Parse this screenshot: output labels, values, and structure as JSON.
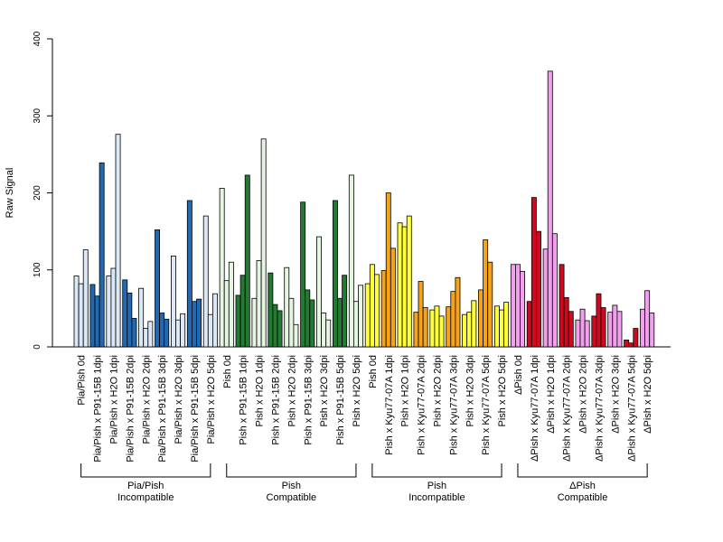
{
  "chart_data": {
    "type": "bar",
    "ylabel": "Raw Signal",
    "ylim": [
      0,
      400
    ],
    "yticks": [
      "0",
      "100",
      "200",
      "300",
      "400"
    ],
    "bars_per_category": 3,
    "categories": [
      "Pia/Pish 0d",
      "Pia/Pish x P91-15B 1dpi",
      "Pia/Pish x H2O 1dpi",
      "Pia/Pish x P91-15B 2dpi",
      "Pia/Pish x H2O 2dpi",
      "Pia/Pish x P91-15B 3dpi",
      "Pia/Pish x H2O 3dpi",
      "Pia/Pish x P91-15B 5dpi",
      "Pia/Pish x H2O 5dpi",
      "Pish 0d",
      "Pish x P91-15B 1dpi",
      "Pish x H2O 1dpi",
      "Pish x P91-15B 2dpi",
      "Pish x H2O 2dpi",
      "Pish x P91-15B 3dpi",
      "Pish x H2O 3dpi",
      "Pish x P91-15B 5dpi",
      "Pish x H2O 5dpi",
      "Pish 0d",
      "Pish x Kyu77-07A 1dpi",
      "Pish x H2O 1dpi",
      "Pish x Kyu77-07A 2dpi",
      "Pish x H2O 2dpi",
      "Pish x Kyu77-07A 3dpi",
      "Pish x H2O 3dpi",
      "Pish x Kyu77-07A 5dpi",
      "Pish x H2O 5dpi",
      "ΔPish 0d",
      "ΔPish x Kyu77-07A 1dpi",
      "ΔPish x H2O 1dpi",
      "ΔPish x Kyu77-07A 2dpi",
      "ΔPish x H2O 2dpi",
      "ΔPish x Kyu77-07A 3dpi",
      "ΔPish x H2O 3dpi",
      "ΔPish x Kyu77-07A 5dpi",
      "ΔPish x H2O 5dpi"
    ],
    "values": [
      [
        92,
        82,
        126
      ],
      [
        81,
        66,
        239
      ],
      [
        92,
        102,
        276
      ],
      [
        87,
        70,
        37
      ],
      [
        76,
        24,
        33
      ],
      [
        152,
        44,
        36
      ],
      [
        118,
        35,
        43
      ],
      [
        190,
        59,
        62
      ],
      [
        170,
        42,
        69
      ],
      [
        206,
        86,
        110
      ],
      [
        67,
        93,
        223
      ],
      [
        63,
        112,
        270
      ],
      [
        96,
        55,
        47
      ],
      [
        103,
        63,
        29
      ],
      [
        188,
        74,
        61
      ],
      [
        143,
        44,
        35
      ],
      [
        190,
        63,
        93
      ],
      [
        223,
        59,
        80
      ],
      [
        82,
        107,
        94
      ],
      [
        99,
        200,
        128
      ],
      [
        161,
        156,
        170
      ],
      [
        45,
        85,
        51
      ],
      [
        48,
        53,
        40
      ],
      [
        52,
        72,
        90
      ],
      [
        42,
        45,
        60
      ],
      [
        74,
        139,
        110
      ],
      [
        53,
        48,
        58
      ],
      [
        107,
        107,
        98
      ],
      [
        59,
        194,
        150
      ],
      [
        127,
        358,
        147
      ],
      [
        107,
        64,
        46
      ],
      [
        35,
        49,
        34
      ],
      [
        40,
        69,
        51
      ],
      [
        45,
        54,
        46
      ],
      [
        9,
        5,
        24
      ],
      [
        49,
        73,
        44
      ]
    ],
    "category_colors": [
      "#dce8f5",
      "#2369b1",
      "#dce8f5",
      "#2369b1",
      "#dce8f5",
      "#2369b1",
      "#dce8f5",
      "#2369b1",
      "#dce8f5",
      "#e6f4e2",
      "#237a33",
      "#e6f4e2",
      "#237a33",
      "#e6f4e2",
      "#237a33",
      "#e6f4e2",
      "#237a33",
      "#e6f4e2",
      "#ffff3a",
      "#f5a31a",
      "#ffff3a",
      "#f5a31a",
      "#ffff3a",
      "#f5a31a",
      "#ffff3a",
      "#f5a31a",
      "#ffff3a",
      "#f2a0ee",
      "#cf0a20",
      "#f2a0ee",
      "#cf0a20",
      "#f2a0ee",
      "#cf0a20",
      "#f2a0ee",
      "#cf0a20",
      "#f2a0ee"
    ],
    "groups": [
      {
        "line1": "Pia/Pish",
        "line2": "Incompatible",
        "start": 0,
        "end": 8
      },
      {
        "line1": "Pish",
        "line2": "Compatible",
        "start": 9,
        "end": 17
      },
      {
        "line1": "Pish",
        "line2": "Incompatible",
        "start": 18,
        "end": 26
      },
      {
        "line1": "ΔPish",
        "line2": "Compatible",
        "start": 27,
        "end": 35
      }
    ],
    "grid": false,
    "legend": "none"
  }
}
